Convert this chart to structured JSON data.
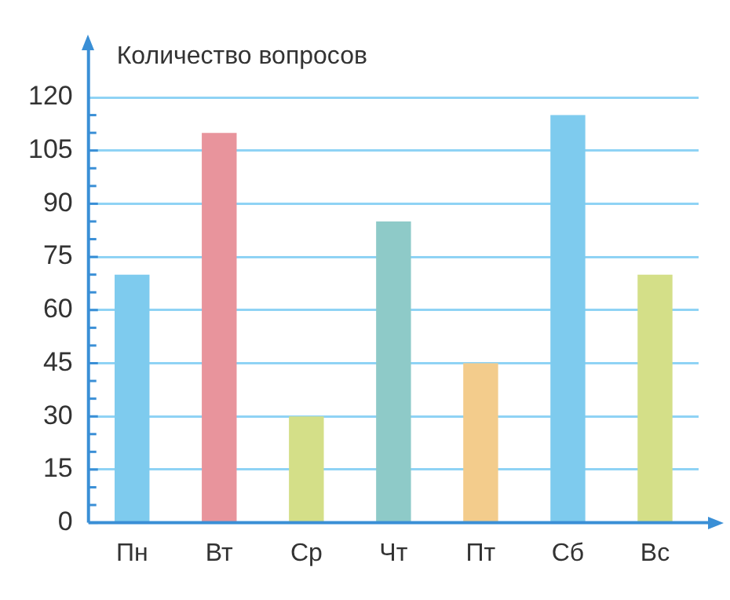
{
  "chart_data": {
    "type": "bar",
    "ylabel": "Количество вопросов",
    "categories": [
      "Пн",
      "Вт",
      "Ср",
      "Чт",
      "Пт",
      "Сб",
      "Вс"
    ],
    "values": [
      70,
      110,
      30,
      85,
      45,
      115,
      70
    ],
    "colors": [
      "#7ecbee",
      "#e8949c",
      "#d4df88",
      "#8ecac8",
      "#f3cc8c",
      "#7ecbee",
      "#d4df88"
    ],
    "ylim": [
      0,
      120
    ],
    "yticks": [
      0,
      15,
      30,
      45,
      60,
      75,
      90,
      105,
      120
    ],
    "grid": "y",
    "legend": false
  }
}
